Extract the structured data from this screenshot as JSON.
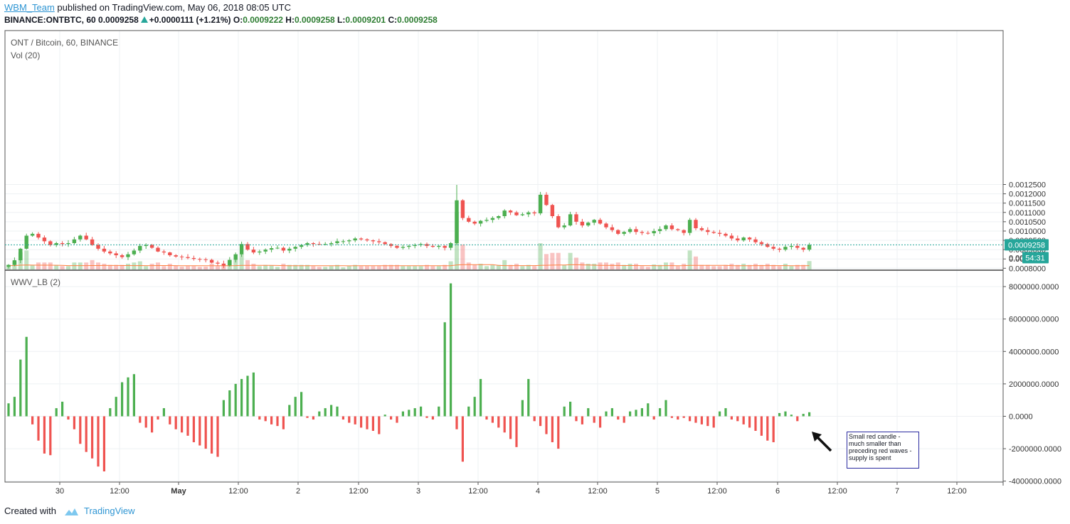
{
  "header": {
    "user": "WBM_Team",
    "published_text": " published on TradingView.com, May 06, 2018 08:05 UTC",
    "symbol": "BINANCE:ONTBTC, 60",
    "price": "0.0009258",
    "change": "+0.0000111 (+1.21%)",
    "o_label": "O:",
    "o_value": "0.0009222",
    "h_label": "H:",
    "h_value": "0.0009258",
    "l_label": "L:",
    "l_value": "0.0009201",
    "c_label": "C:",
    "c_value": "0.0009258"
  },
  "legend": {
    "title": "ONT / Bitcoin, 60, BINANCE",
    "volume": "Vol (20)",
    "indicator": "WWV_LB (2)"
  },
  "badges": {
    "price": "0.0009258",
    "countdown": "54:31",
    "hidden_label": "0.000"
  },
  "annotation": {
    "text": "Small red candle - much smaller than preceding red waves - supply is spent"
  },
  "footer": {
    "created_with": "Created with",
    "brand": "TradingView"
  },
  "colors": {
    "up": "#4caf50",
    "down": "#ef5350",
    "volume_ma": "#ff7f3f",
    "current_price": "#26a69a",
    "link": "#2e95d3",
    "annotation_border": "#2a2aa0"
  },
  "chart_data": [
    {
      "type": "candlestick",
      "title": "ONT / Bitcoin, 60, BINANCE",
      "y_ticks": [
        "0.0012500",
        "0.0012000",
        "0.0011500",
        "0.0011000",
        "0.0010500",
        "0.0010000",
        "0.0009500",
        "0.0009000",
        "0.0008500",
        "0.0008000"
      ],
      "ylim": [
        0.000765,
        0.001275
      ],
      "x_ticks": [
        "30",
        "12:00",
        "May",
        "12:00",
        "2",
        "12:00",
        "3",
        "12:00",
        "4",
        "12:00",
        "5",
        "12:00",
        "6",
        "12:00",
        "7",
        "12:00"
      ],
      "current_price": 0.0009258,
      "candles_close": [
        0.000818,
        0.000843,
        0.000905,
        0.000975,
        0.000985,
        0.000965,
        0.000945,
        0.000925,
        0.000935,
        0.00093,
        0.000935,
        0.000955,
        0.000975,
        0.000955,
        0.000925,
        0.000905,
        0.00089,
        0.00088,
        0.00087,
        0.00086,
        0.000875,
        0.000895,
        0.00092,
        0.000925,
        0.00091,
        0.00089,
        0.000885,
        0.00087,
        0.000863,
        0.00086,
        0.000855,
        0.00085,
        0.000848,
        0.000845,
        0.00083,
        0.000825,
        0.000815,
        0.000845,
        0.000875,
        0.00093,
        0.0009,
        0.000885,
        0.00089,
        0.0009,
        0.000908,
        0.00091,
        0.000895,
        0.000905,
        0.000915,
        0.000925,
        0.000935,
        0.00093,
        0.000928,
        0.00093,
        0.000935,
        0.000945,
        0.000945,
        0.00095,
        0.00096,
        0.000955,
        0.00095,
        0.000945,
        0.00094,
        0.00093,
        0.00092,
        0.00091,
        0.000915,
        0.00092,
        0.000925,
        0.00093,
        0.00092,
        0.000915,
        0.00092,
        0.00091,
        0.000935,
        0.001165,
        0.00107,
        0.00105,
        0.00104,
        0.001055,
        0.00106,
        0.00107,
        0.00108,
        0.00111,
        0.0011,
        0.001085,
        0.00109,
        0.0011,
        0.001095,
        0.001195,
        0.00114,
        0.00108,
        0.00102,
        0.00103,
        0.00109,
        0.00105,
        0.00103,
        0.001045,
        0.00106,
        0.00104,
        0.00102,
        0.001005,
        0.000985,
        0.000995,
        0.00101,
        0.000995,
        0.00099,
        0.000988,
        0.001,
        0.00101,
        0.00103,
        0.00101,
        0.001005,
        0.00099,
        0.00106,
        0.001015,
        0.001005,
        0.000995,
        0.00099,
        0.000985,
        0.000975,
        0.00096,
        0.00095,
        0.000965,
        0.000955,
        0.00094,
        0.00093,
        0.000915,
        0.000905,
        0.0009,
        0.000915,
        0.00092,
        0.00091,
        0.0009,
        0.000926
      ]
    },
    {
      "type": "bar",
      "title": "Vol (20)",
      "note": "volume bars colored by candle direction with orange 20-period moving average; largest spike at May 3 00:00"
    },
    {
      "type": "bar",
      "title": "WWV_LB (2)",
      "y_ticks": [
        "8000000.0000",
        "6000000.0000",
        "4000000.0000",
        "2000000.0000",
        "0.0000",
        "-2000000.0000",
        "-4000000.0000"
      ],
      "ylim": [
        -4000000,
        8200000
      ],
      "values": [
        800000,
        1200000,
        3500000,
        4900000,
        -500000,
        -1500000,
        -2300000,
        -2400000,
        500000,
        900000,
        -200000,
        -800000,
        -1700000,
        -2200000,
        -2600000,
        -3100000,
        -3400000,
        500000,
        1200000,
        2100000,
        2400000,
        2600000,
        -400000,
        -700000,
        -1000000,
        -200000,
        500000,
        -500000,
        -800000,
        -1000000,
        -1200000,
        -1600000,
        -1800000,
        -2000000,
        -2300000,
        -2500000,
        1000000,
        1600000,
        2000000,
        2300000,
        2500000,
        2700000,
        -200000,
        -300000,
        -500000,
        -600000,
        -800000,
        700000,
        1200000,
        1500000,
        -100000,
        -200000,
        300000,
        500000,
        700000,
        600000,
        -200000,
        -400000,
        -500000,
        -700000,
        -800000,
        -900000,
        -1100000,
        100000,
        -200000,
        -400000,
        300000,
        400000,
        500000,
        600000,
        -100000,
        -200000,
        600000,
        5800000,
        8200000,
        -800000,
        -2800000,
        600000,
        1200000,
        2300000,
        -200000,
        -400000,
        -700000,
        -1000000,
        -1400000,
        -1900000,
        1000000,
        2300000,
        -300000,
        -600000,
        -1100000,
        -1600000,
        -2000000,
        600000,
        900000,
        -300000,
        -500000,
        500000,
        -400000,
        -700000,
        300000,
        500000,
        -200000,
        -400000,
        300000,
        400000,
        500000,
        800000,
        -200000,
        500000,
        1000000,
        -100000,
        -200000,
        -100000,
        -300000,
        -400000,
        -500000,
        -600000,
        -700000,
        300000,
        500000,
        -200000,
        -300000,
        -500000,
        -700000,
        -900000,
        -1200000,
        -1500000,
        -1600000,
        200000,
        300000,
        100000,
        -300000,
        150000,
        250000
      ],
      "annotation": "Small red candle - much smaller than preceding red waves - supply is spent"
    }
  ]
}
